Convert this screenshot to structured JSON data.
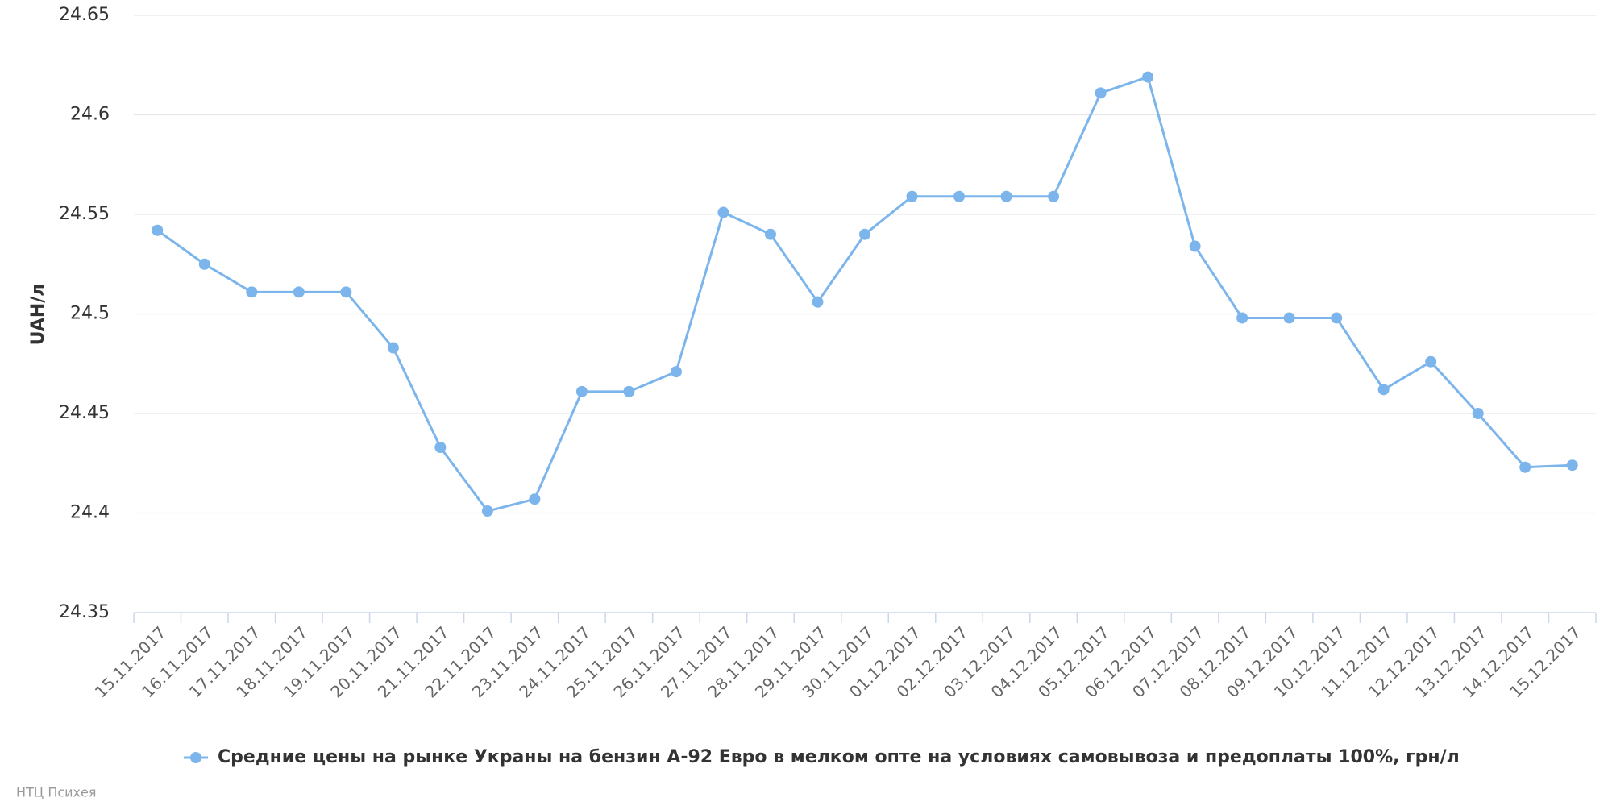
{
  "chart_data": {
    "type": "line",
    "y_axis_label": "UAH/л",
    "categories": [
      "15.11.2017",
      "16.11.2017",
      "17.11.2017",
      "18.11.2017",
      "19.11.2017",
      "20.11.2017",
      "21.11.2017",
      "22.11.2017",
      "23.11.2017",
      "24.11.2017",
      "25.11.2017",
      "26.11.2017",
      "27.11.2017",
      "28.11.2017",
      "29.11.2017",
      "30.11.2017",
      "01.12.2017",
      "02.12.2017",
      "03.12.2017",
      "04.12.2017",
      "05.12.2017",
      "06.12.2017",
      "07.12.2017",
      "08.12.2017",
      "09.12.2017",
      "10.12.2017",
      "11.12.2017",
      "12.12.2017",
      "13.12.2017",
      "14.12.2017",
      "15.12.2017"
    ],
    "series": [
      {
        "name": "Средние цены на рынке Украны на бензин А-92 Евро в мелком опте на условиях самовывоза и предоплаты 100%, грн/л",
        "color": "#7cb5ec",
        "values": [
          24.542,
          24.525,
          24.511,
          24.511,
          24.511,
          24.483,
          24.433,
          24.401,
          24.407,
          24.461,
          24.461,
          24.471,
          24.551,
          24.54,
          24.506,
          24.54,
          24.559,
          24.559,
          24.559,
          24.559,
          24.611,
          24.619,
          24.534,
          24.498,
          24.498,
          24.498,
          24.462,
          24.476,
          24.45,
          24.423,
          24.424
        ]
      }
    ],
    "ylim": [
      24.35,
      24.65
    ],
    "yticks": [
      24.35,
      24.4,
      24.45,
      24.5,
      24.55,
      24.6,
      24.65
    ],
    "grid": true,
    "legend": "bottom",
    "credits": "НТЦ Психея"
  }
}
